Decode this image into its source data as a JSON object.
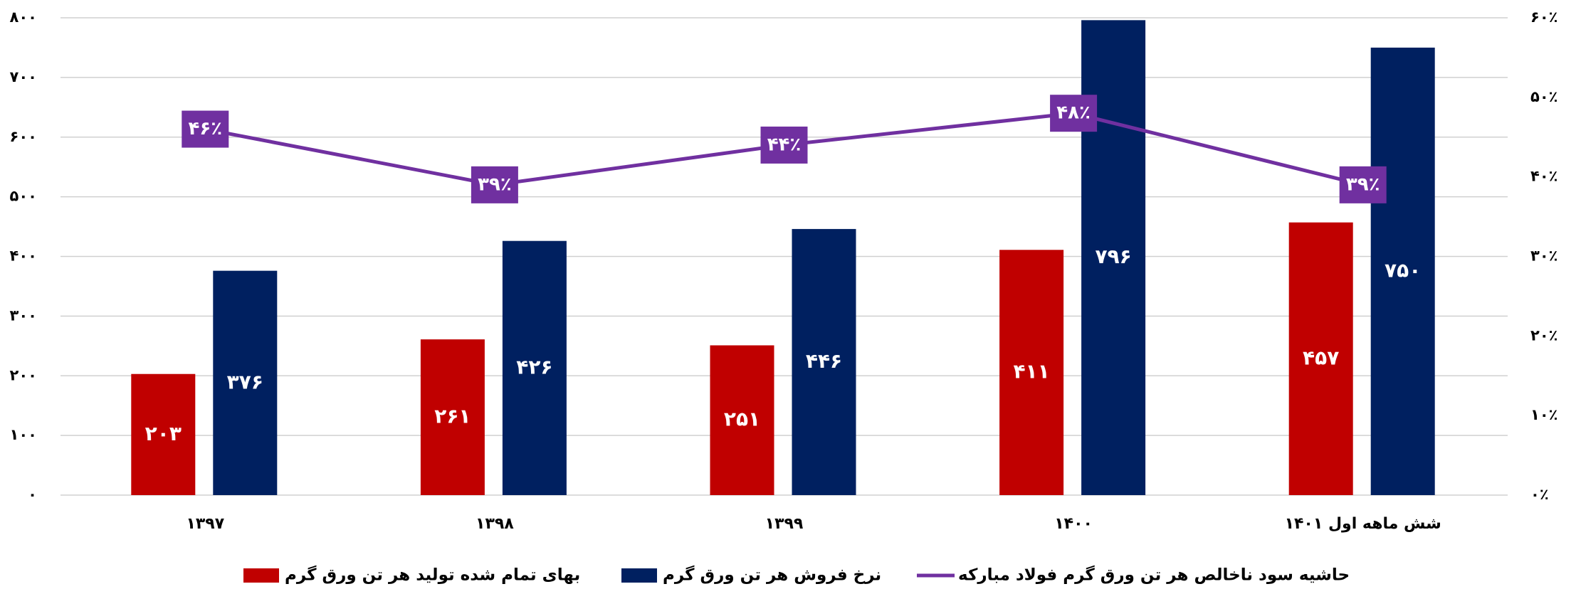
{
  "chart_data": {
    "type": "bar",
    "categories": [
      "۱۳۹۷",
      "۱۳۹۸",
      "۱۳۹۹",
      "۱۴۰۰",
      "شش ماهه اول ۱۴۰۱"
    ],
    "series": [
      {
        "name": "بهای تمام شده تولید هر تن ورق گرم",
        "color": "#c00000",
        "values": [
          203,
          261,
          251,
          411,
          457
        ],
        "value_labels": [
          "۲۰۳",
          "۲۶۱",
          "۲۵۱",
          "۴۱۱",
          "۴۵۷"
        ]
      },
      {
        "name": "نرخ فروش هر تن ورق گرم",
        "color": "#002060",
        "values": [
          376,
          426,
          446,
          796,
          750
        ],
        "value_labels": [
          "۳۷۶",
          "۴۲۶",
          "۴۴۶",
          "۷۹۶",
          "۷۵۰"
        ]
      },
      {
        "name": "حاشیه سود ناخالص هر تن ورق گرم فولاد مبارکه",
        "color": "#7030a0",
        "type": "line",
        "axis": "y2",
        "values": [
          46,
          39,
          44,
          48,
          39
        ],
        "value_labels": [
          "۴۶٪",
          "۳۹٪",
          "۴۴٪",
          "۴۸٪",
          "۳۹٪"
        ]
      }
    ],
    "ylim": [
      0,
      800
    ],
    "yticks": [
      {
        "value": 0,
        "label": "۰"
      },
      {
        "value": 100,
        "label": "۱۰۰"
      },
      {
        "value": 200,
        "label": "۲۰۰"
      },
      {
        "value": 300,
        "label": "۳۰۰"
      },
      {
        "value": 400,
        "label": "۴۰۰"
      },
      {
        "value": 500,
        "label": "۵۰۰"
      },
      {
        "value": 600,
        "label": "۶۰۰"
      },
      {
        "value": 700,
        "label": "۷۰۰"
      },
      {
        "value": 800,
        "label": "۸۰۰"
      }
    ],
    "y2lim": [
      0,
      60
    ],
    "y2ticks": [
      {
        "value": 0,
        "label": "۰٪"
      },
      {
        "value": 10,
        "label": "۱۰٪"
      },
      {
        "value": 20,
        "label": "۲۰٪"
      },
      {
        "value": 30,
        "label": "۳۰٪"
      },
      {
        "value": 40,
        "label": "۴۰٪"
      },
      {
        "value": 50,
        "label": "۵۰٪"
      },
      {
        "value": 60,
        "label": "۶۰٪"
      }
    ],
    "grid": true,
    "legend": "bottom"
  }
}
